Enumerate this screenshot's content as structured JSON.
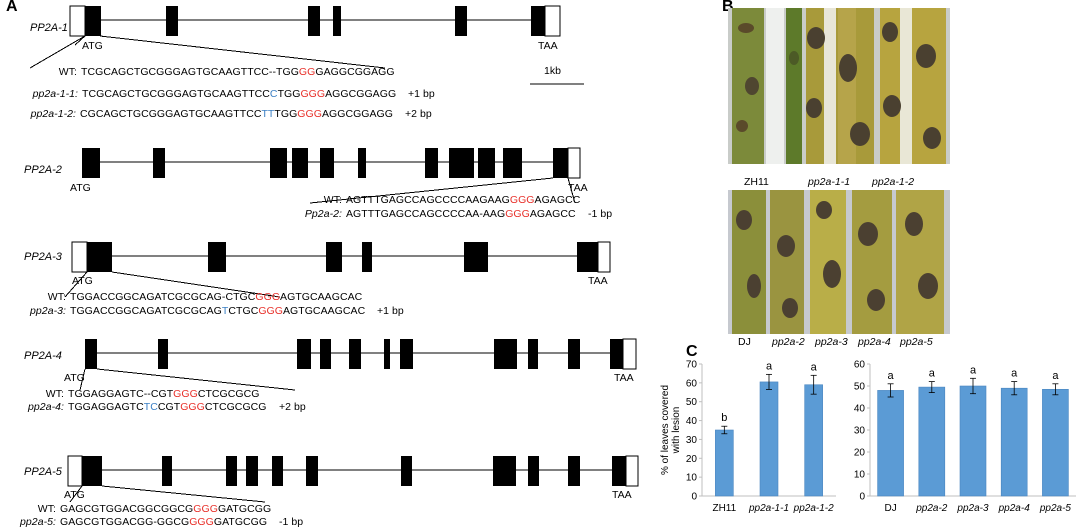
{
  "panels": {
    "a": "A",
    "b": "B",
    "c": "C"
  },
  "panel_a": {
    "scale_bar": "1kb",
    "genes": [
      {
        "name": "PP2A-1",
        "start_codon": "ATG",
        "stop_codon": "TAA",
        "alleles": [
          {
            "label": "WT:",
            "segments": [
              {
                "t": "TCGCAGCTGCGGGAGTGCAAGTTCC--TGG",
                "c": "k"
              },
              {
                "t": "GG",
                "c": "r"
              },
              {
                "t": "GAGGCGGAGG",
                "c": "k"
              }
            ],
            "change": ""
          },
          {
            "label": "pp2a-1-1:",
            "segments": [
              {
                "t": "TCGCAGCTGCGGGAGTGCAAGTTCC",
                "c": "k"
              },
              {
                "t": "C",
                "c": "b"
              },
              {
                "t": "TGG",
                "c": "k"
              },
              {
                "t": "GGG",
                "c": "r"
              },
              {
                "t": "AGGCGGAGG",
                "c": "k"
              }
            ],
            "change": "+1 bp"
          },
          {
            "label": "pp2a-1-2:",
            "segments": [
              {
                "t": "CGCAGCTGCGGGAGTGCAAGTTCC",
                "c": "k"
              },
              {
                "t": "TT",
                "c": "b"
              },
              {
                "t": "TGG",
                "c": "k"
              },
              {
                "t": "GGG",
                "c": "r"
              },
              {
                "t": "AGGCGGAGG",
                "c": "k"
              }
            ],
            "change": "+2 bp"
          }
        ]
      },
      {
        "name": "PP2A-2",
        "start_codon": "ATG",
        "stop_codon": "TAA",
        "alleles": [
          {
            "label": "WT:",
            "segments": [
              {
                "t": "AGTTTGAGCCAGCCCCAAGAAG",
                "c": "k"
              },
              {
                "t": "GGG",
                "c": "r"
              },
              {
                "t": "AGAGCC",
                "c": "k"
              }
            ],
            "change": ""
          },
          {
            "label": "Pp2a-2:",
            "segments": [
              {
                "t": "AGTTTGAGCCAGCCCCAA-AAG",
                "c": "k"
              },
              {
                "t": "GGG",
                "c": "r"
              },
              {
                "t": "AGAGCC",
                "c": "k"
              }
            ],
            "change": "-1 bp"
          }
        ]
      },
      {
        "name": "PP2A-3",
        "start_codon": "ATG",
        "stop_codon": "TAA",
        "alleles": [
          {
            "label": "WT:",
            "segments": [
              {
                "t": "TGGACCGGCAGATCGCGCAG-CTGC",
                "c": "k"
              },
              {
                "t": "GGG",
                "c": "r"
              },
              {
                "t": "AGTGCAAGCAC",
                "c": "k"
              }
            ],
            "change": ""
          },
          {
            "label": "pp2a-3:",
            "segments": [
              {
                "t": "TGGACCGGCAGATCGCGCAG",
                "c": "k"
              },
              {
                "t": "T",
                "c": "b"
              },
              {
                "t": "CTGC",
                "c": "k"
              },
              {
                "t": "GGG",
                "c": "r"
              },
              {
                "t": "AGTGCAAGCAC",
                "c": "k"
              }
            ],
            "change": "+1 bp"
          }
        ]
      },
      {
        "name": "PP2A-4",
        "start_codon": "ATG",
        "stop_codon": "TAA",
        "alleles": [
          {
            "label": "WT:",
            "segments": [
              {
                "t": "TGGAGGAGTC--CGT",
                "c": "k"
              },
              {
                "t": "GGG",
                "c": "r"
              },
              {
                "t": "CTCGCGCG",
                "c": "k"
              }
            ],
            "change": ""
          },
          {
            "label": "pp2a-4:",
            "segments": [
              {
                "t": "TGGAGGAGTC",
                "c": "k"
              },
              {
                "t": "TC",
                "c": "b"
              },
              {
                "t": "CGT",
                "c": "k"
              },
              {
                "t": "GGG",
                "c": "r"
              },
              {
                "t": "CTCGCGCG",
                "c": "k"
              }
            ],
            "change": "+2 bp"
          }
        ]
      },
      {
        "name": "PP2A-5",
        "start_codon": "ATG",
        "stop_codon": "TAA",
        "alleles": [
          {
            "label": "WT:",
            "segments": [
              {
                "t": "GAGCGTGGACGGCGGCG",
                "c": "k"
              },
              {
                "t": "GGG",
                "c": "r"
              },
              {
                "t": "GATGCGG",
                "c": "k"
              }
            ],
            "change": ""
          },
          {
            "label": "pp2a-5:",
            "segments": [
              {
                "t": "GAGCGTGGACGG-GGCG",
                "c": "k"
              },
              {
                "t": "GGG",
                "c": "r"
              },
              {
                "t": "GATGCGG",
                "c": "k"
              }
            ],
            "change": "-1 bp"
          }
        ]
      }
    ]
  },
  "panel_b": {
    "top_labels": [
      "ZH11",
      "pp2a-1-1",
      "pp2a-1-2"
    ],
    "bottom_labels": [
      "DJ",
      "pp2a-2",
      "pp2a-3",
      "pp2a-4",
      "pp2a-5"
    ]
  },
  "chart_data": [
    {
      "type": "bar",
      "ylabel": "% of leaves covered with lesion",
      "ylim": [
        0,
        70
      ],
      "yticks": [
        0,
        10,
        20,
        30,
        40,
        50,
        60,
        70
      ],
      "categories": [
        "ZH11",
        "pp2a-1-1",
        "pp2a-1-2"
      ],
      "values": [
        35,
        60.5,
        59
      ],
      "errors": [
        2,
        4,
        5
      ],
      "letters": [
        "b",
        "a",
        "a"
      ],
      "bar_color": "#5b9bd5"
    },
    {
      "type": "bar",
      "ylim": [
        0,
        60
      ],
      "yticks": [
        0,
        10,
        20,
        30,
        40,
        50,
        60
      ],
      "categories": [
        "DJ",
        "pp2a-2",
        "pp2a-3",
        "pp2a-4",
        "pp2a-5"
      ],
      "values": [
        48,
        49.5,
        50,
        49,
        48.5
      ],
      "errors": [
        3,
        2.5,
        3.5,
        3,
        2.5
      ],
      "letters": [
        "a",
        "a",
        "a",
        "a",
        "a"
      ],
      "bar_color": "#5b9bd5"
    }
  ]
}
